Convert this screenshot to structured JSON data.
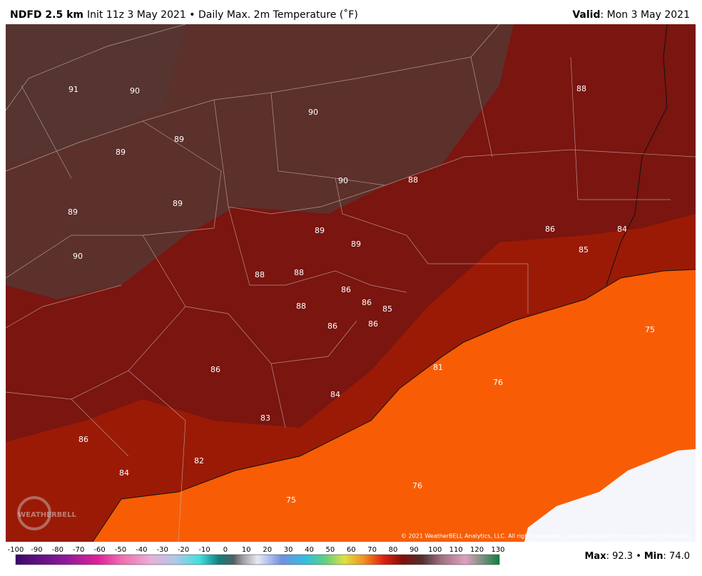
{
  "header": {
    "model": "NDFD 2.5 km",
    "product": "Init 11z 3 May 2021 • Daily Max. 2m Temperature (˚F)",
    "valid_label": "Valid",
    "valid_value": ": Mon 3 May 2021"
  },
  "map": {
    "labels": [
      91,
      90,
      90,
      88,
      89,
      89,
      90,
      88,
      89,
      89,
      89,
      89,
      86,
      84,
      85,
      90,
      88,
      88,
      86,
      86,
      85,
      88,
      86,
      86,
      75,
      81,
      76,
      86,
      84,
      83,
      86,
      82,
      84,
      76,
      75
    ],
    "logo": "WEATHERBELL",
    "copyright": "© 2021 WeatherBELL Analytics, LLC. All rights reserved. License required for commercial distribution."
  },
  "colorbar": {
    "ticks": [
      -100,
      -90,
      -80,
      -70,
      -60,
      -50,
      -40,
      -30,
      -20,
      -10,
      0,
      10,
      20,
      30,
      40,
      50,
      60,
      70,
      80,
      90,
      100,
      110,
      120,
      130
    ]
  },
  "footer": {
    "max_label": "Max",
    "max_value": ": 92.3 •",
    "min_label": "Min",
    "min_value": ": 74.0"
  }
}
